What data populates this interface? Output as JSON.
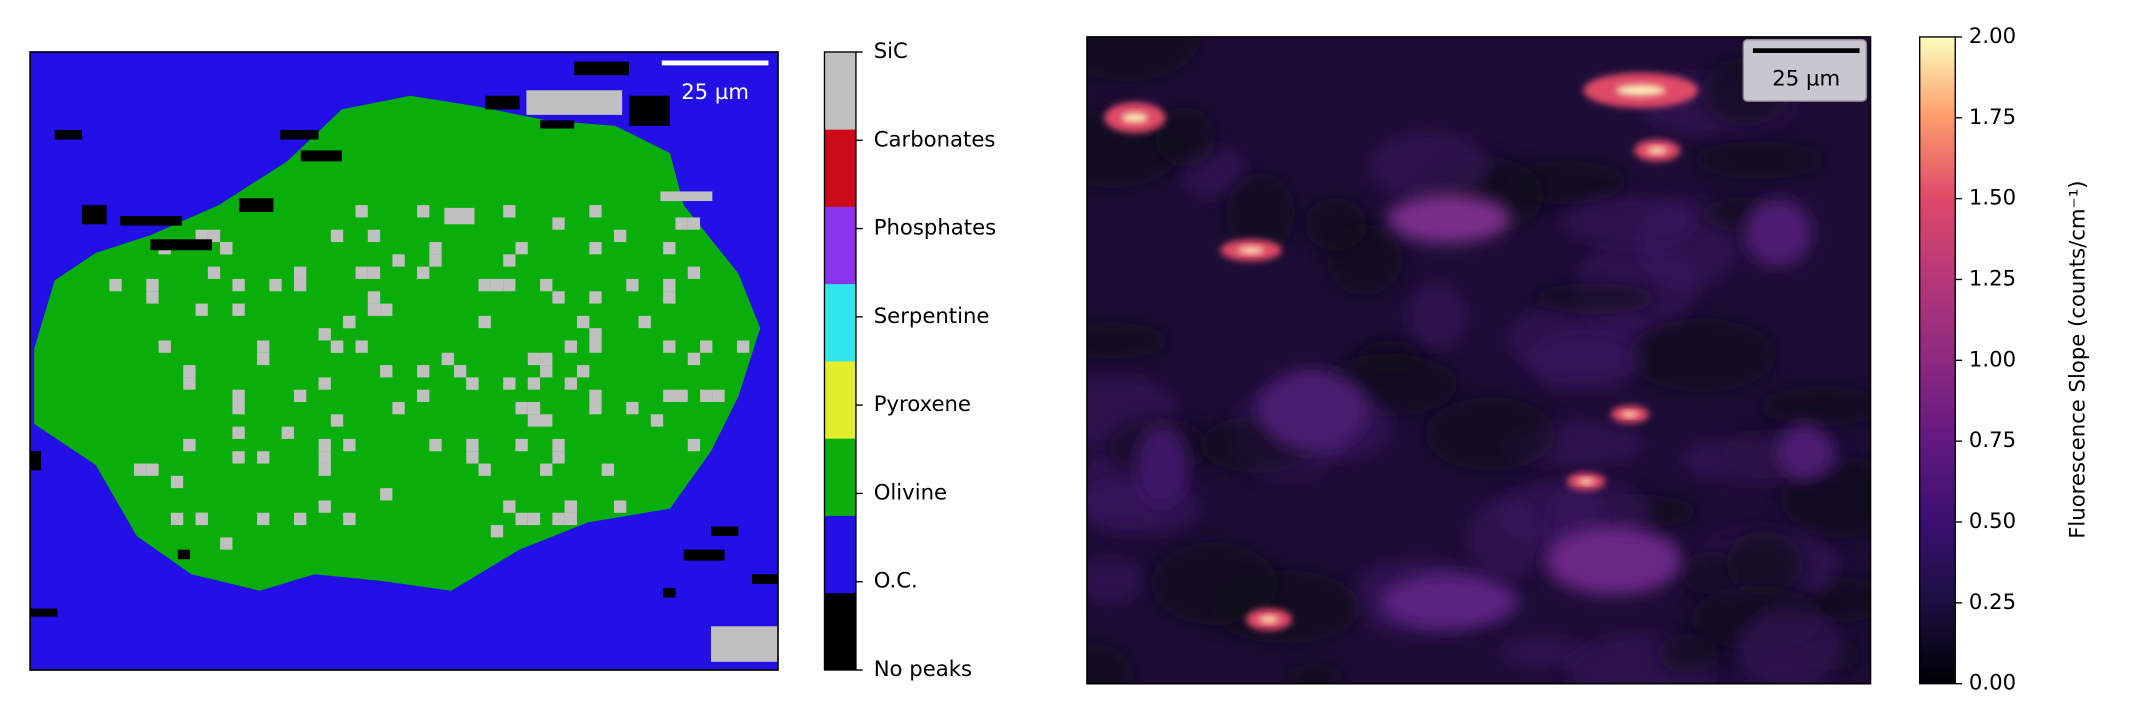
{
  "chart_data": [
    {
      "type": "heatmap",
      "scale_bar": "25 µm",
      "scale_bar_color": "#ffffff",
      "categories": [
        "No peaks",
        "O.C.",
        "Olivine",
        "Pyroxene",
        "Serpentine",
        "Phosphates",
        "Carbonates",
        "SiC"
      ],
      "colors": [
        "#000000",
        "#2210e6",
        "#0aae0a",
        "#e2ee2c",
        "#2ee6ee",
        "#8a34ee",
        "#cc0a1a",
        "#c0c0c0"
      ]
    },
    {
      "type": "heatmap",
      "scale_bar": "25 µm",
      "scale_bar_color": "#000000",
      "colormap": "magma",
      "colorbar_label": "Fluorescence Slope (counts/cm⁻¹)",
      "zlim": [
        0,
        2
      ],
      "zticks": [
        {
          "value": 0,
          "label": "0.00"
        },
        {
          "value": 0.25,
          "label": "0.25"
        },
        {
          "value": 0.5,
          "label": "0.50"
        },
        {
          "value": 0.75,
          "label": "0.75"
        },
        {
          "value": 1,
          "label": "1.00"
        },
        {
          "value": 1.25,
          "label": "1.25"
        },
        {
          "value": 1.5,
          "label": "1.50"
        },
        {
          "value": 1.75,
          "label": "1.75"
        },
        {
          "value": 2,
          "label": "2.00"
        }
      ]
    }
  ]
}
